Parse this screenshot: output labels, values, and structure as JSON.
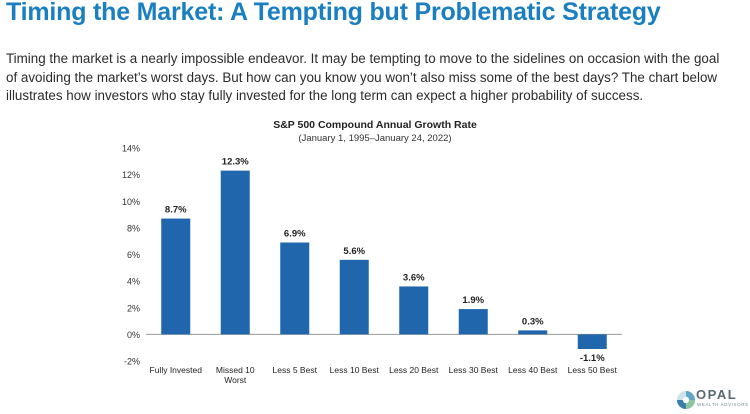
{
  "page": {
    "title": "Timing the Market:  A Tempting but Problematic Strategy",
    "intro": "Timing the market is a nearly impossible endeavor. It may be tempting to move to the sidelines on occasion with the goal of avoiding the market’s worst days. But how can you know you won’t also miss some of the best days? The chart below illustrates how investors who stay fully invested for the long term can expect a higher probability of success."
  },
  "logo": {
    "name": "OPAL",
    "tagline": "WEALTH ADVISORS"
  },
  "colors": {
    "title": "#1a7fc1",
    "bar": "#1f66ad",
    "axis": "#9a9a9a"
  },
  "chart_data": {
    "type": "bar",
    "title": "S&P 500 Compound Annual Growth Rate",
    "subtitle": "(January 1, 1995–January 24, 2022)",
    "categories": [
      "Fully Invested",
      "Missed 10 Worst",
      "Less 5 Best",
      "Less 10 Best",
      "Less 20 Best",
      "Less 30 Best",
      "Less 40 Best",
      "Less 50 Best"
    ],
    "category_lines": [
      [
        "Fully Invested"
      ],
      [
        "Missed 10",
        "Worst"
      ],
      [
        "Less 5 Best"
      ],
      [
        "Less 10 Best"
      ],
      [
        "Less 20 Best"
      ],
      [
        "Less 30 Best"
      ],
      [
        "Less 40 Best"
      ],
      [
        "Less 50 Best"
      ]
    ],
    "values": [
      8.7,
      12.3,
      6.9,
      5.6,
      3.6,
      1.9,
      0.3,
      -1.1
    ],
    "data_labels": [
      "8.7%",
      "12.3%",
      "6.9%",
      "5.6%",
      "3.6%",
      "1.9%",
      "0.3%",
      "-1.1%"
    ],
    "yticks": [
      -2,
      0,
      2,
      4,
      6,
      8,
      10,
      12,
      14
    ],
    "ytick_labels": [
      "-2%",
      "0%",
      "2%",
      "4%",
      "6%",
      "8%",
      "10%",
      "12%",
      "14%"
    ],
    "ylim": [
      -2,
      14
    ],
    "xlabel": "",
    "ylabel": "",
    "grid": false,
    "legend": "none"
  }
}
